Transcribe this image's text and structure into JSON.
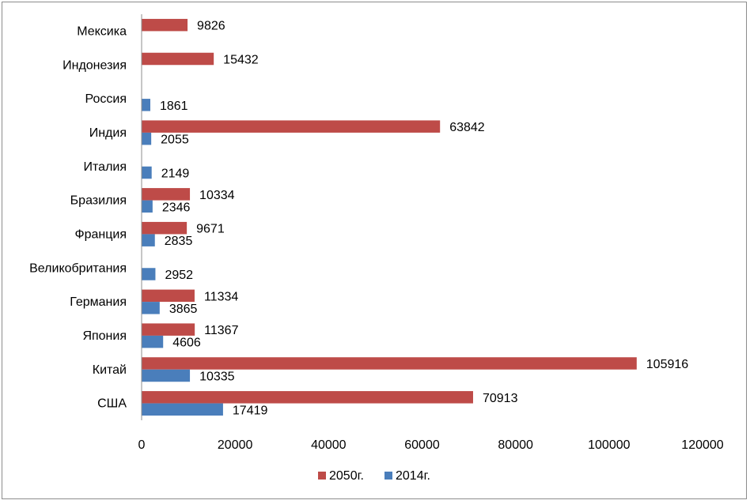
{
  "chart_data": {
    "type": "bar",
    "orientation": "horizontal",
    "categories": [
      "США",
      "Китай",
      "Япония",
      "Германия",
      "Великобритания",
      "Франция",
      "Бразилия",
      "Италия",
      "Индия",
      "Россия",
      "Индонезия",
      "Мексика"
    ],
    "series": [
      {
        "name": "2014г.",
        "color": "#4a7ebb",
        "values": [
          17419,
          10335,
          4606,
          3865,
          2952,
          2835,
          2346,
          2149,
          2055,
          1861,
          null,
          null
        ]
      },
      {
        "name": "2050г.",
        "color": "#be4b48",
        "values": [
          70913,
          105916,
          11367,
          11334,
          null,
          9671,
          10334,
          null,
          63842,
          null,
          15432,
          9826
        ]
      }
    ],
    "xlim": [
      0,
      120000
    ],
    "xticks": [
      "0",
      "20000",
      "40000",
      "60000",
      "80000",
      "100000",
      "120000"
    ],
    "title": "",
    "xlabel": "",
    "ylabel": "",
    "legend_position": "bottom",
    "grid": false
  }
}
